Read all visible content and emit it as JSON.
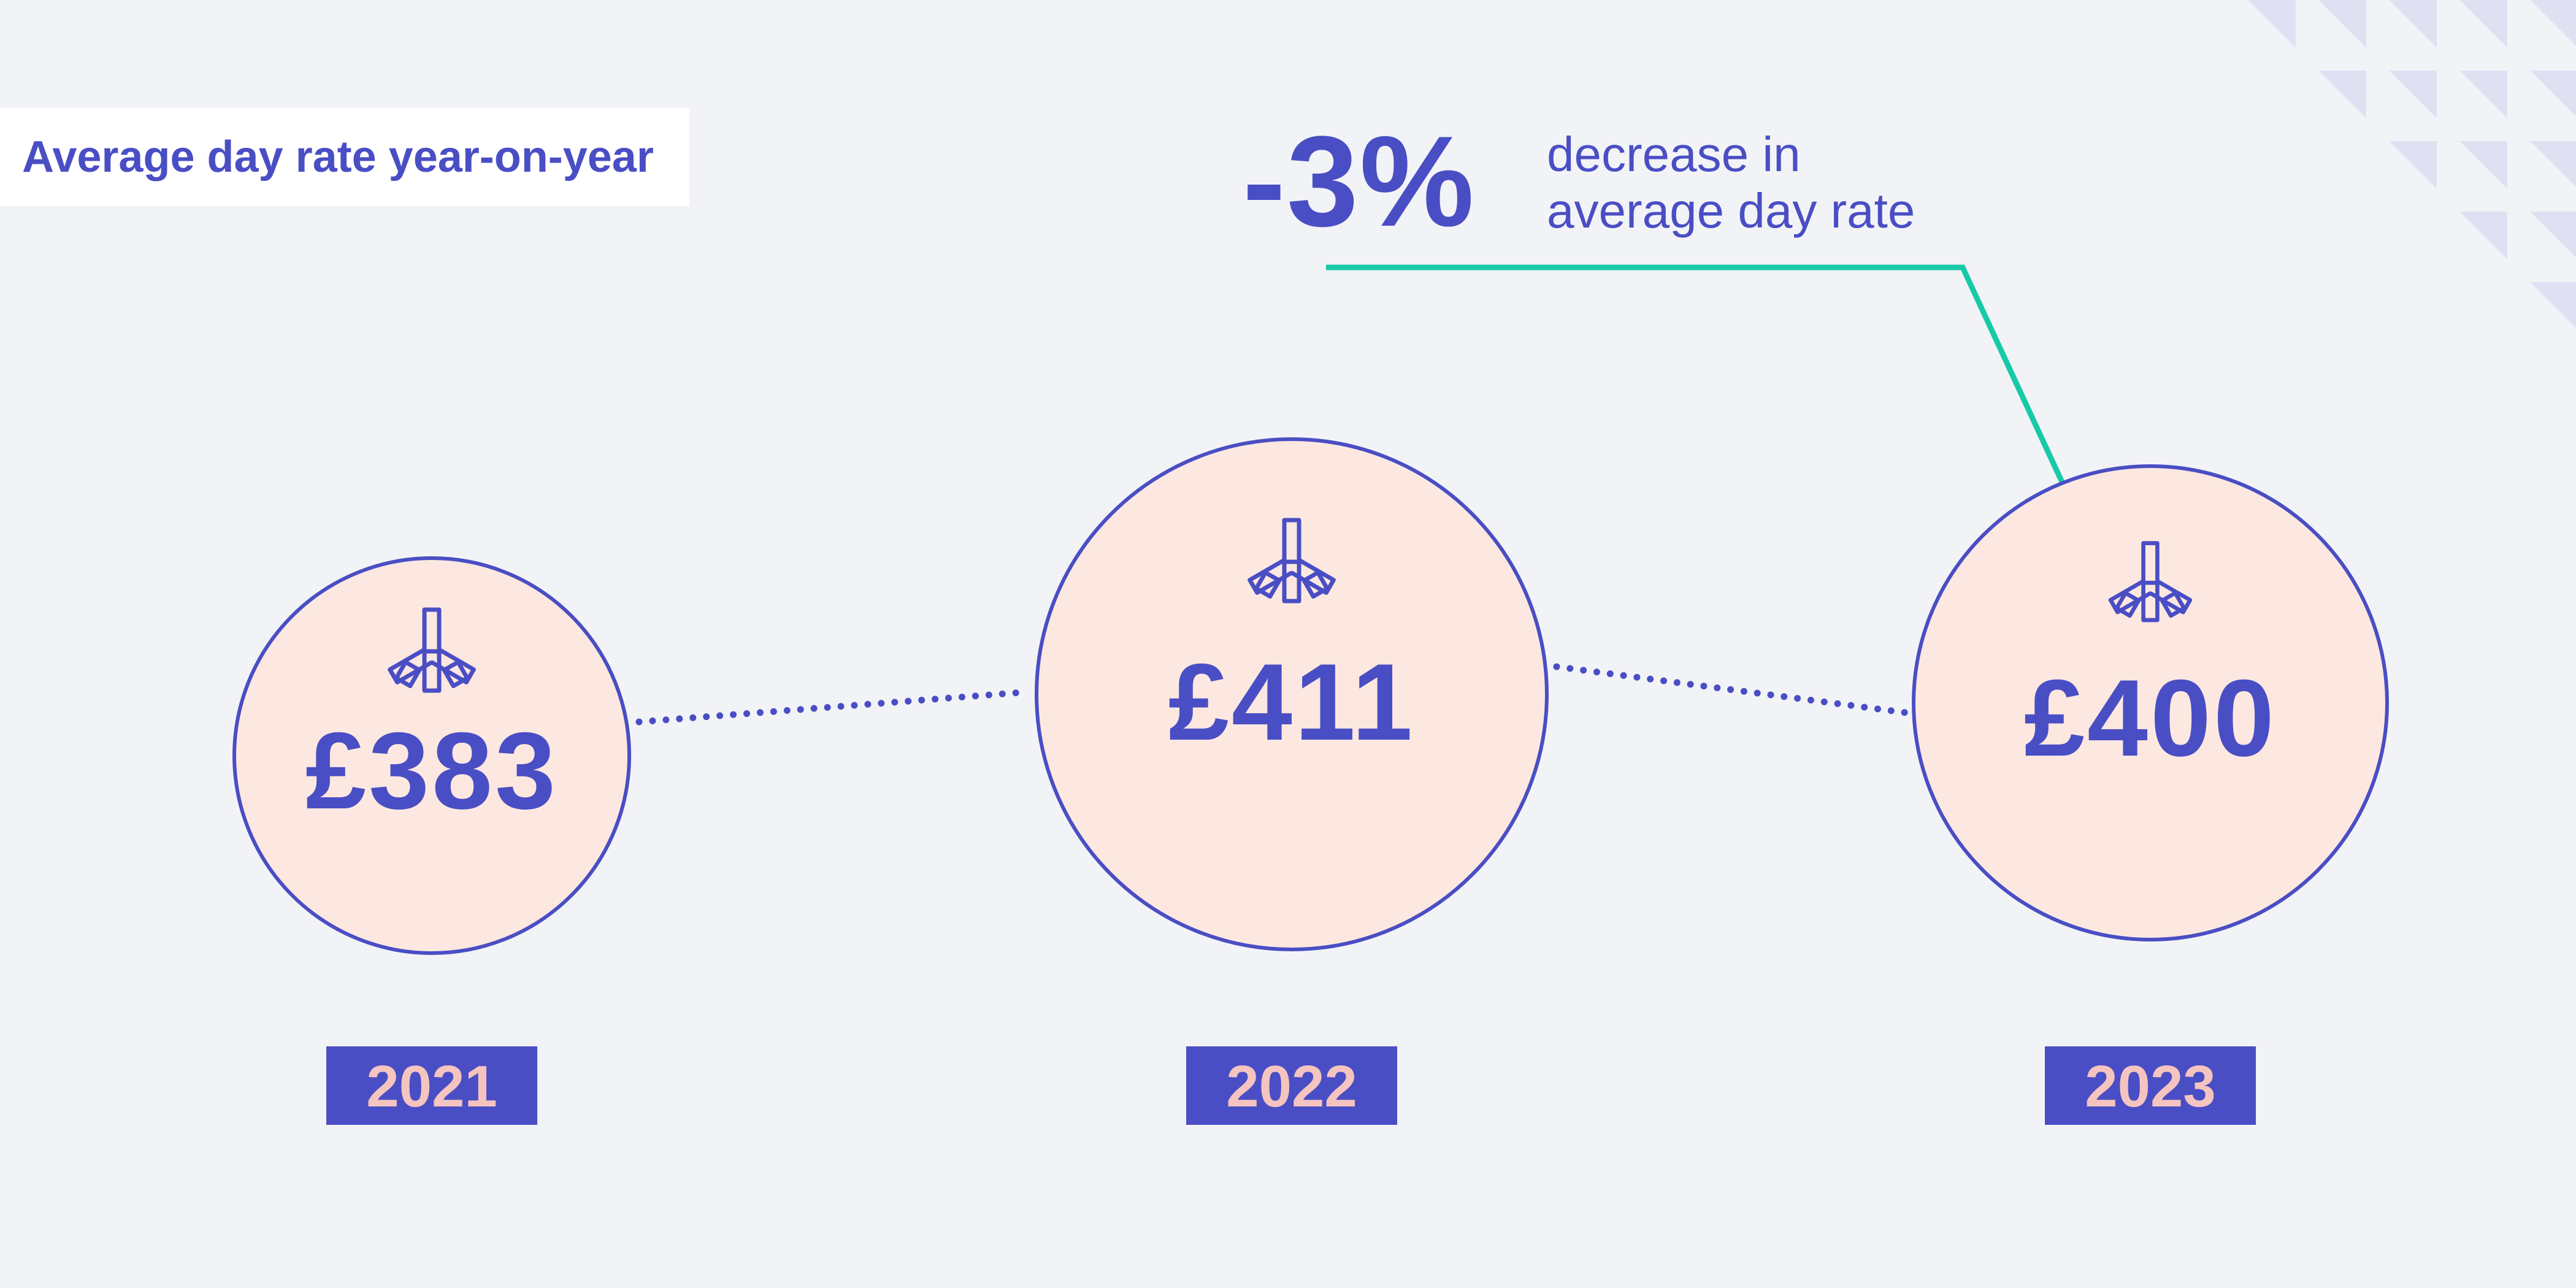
{
  "colors": {
    "background": "#f2f3f6",
    "primary": "#4a4ec4",
    "circle_fill": "#fde8e1",
    "callout_line": "#18c9a8",
    "year_text": "#f5c4c0",
    "corner_triangles": "#dfe1f3"
  },
  "header": {
    "title": "Average day rate year-on-year"
  },
  "callout": {
    "value": "-3%",
    "caption_line1": "decrease in",
    "caption_line2": "average day rate"
  },
  "icons": {
    "circle_icon": "medical-asterisk-icon"
  },
  "chart_data": {
    "type": "bubble",
    "title": "Average day rate year-on-year",
    "categories": [
      "2021",
      "2022",
      "2023"
    ],
    "values": [
      383,
      411,
      400
    ],
    "value_labels": [
      "£383",
      "£411",
      "£400"
    ],
    "unit": "£",
    "annotation": {
      "text": "-3% decrease in average day rate",
      "target_category": "2023"
    }
  }
}
